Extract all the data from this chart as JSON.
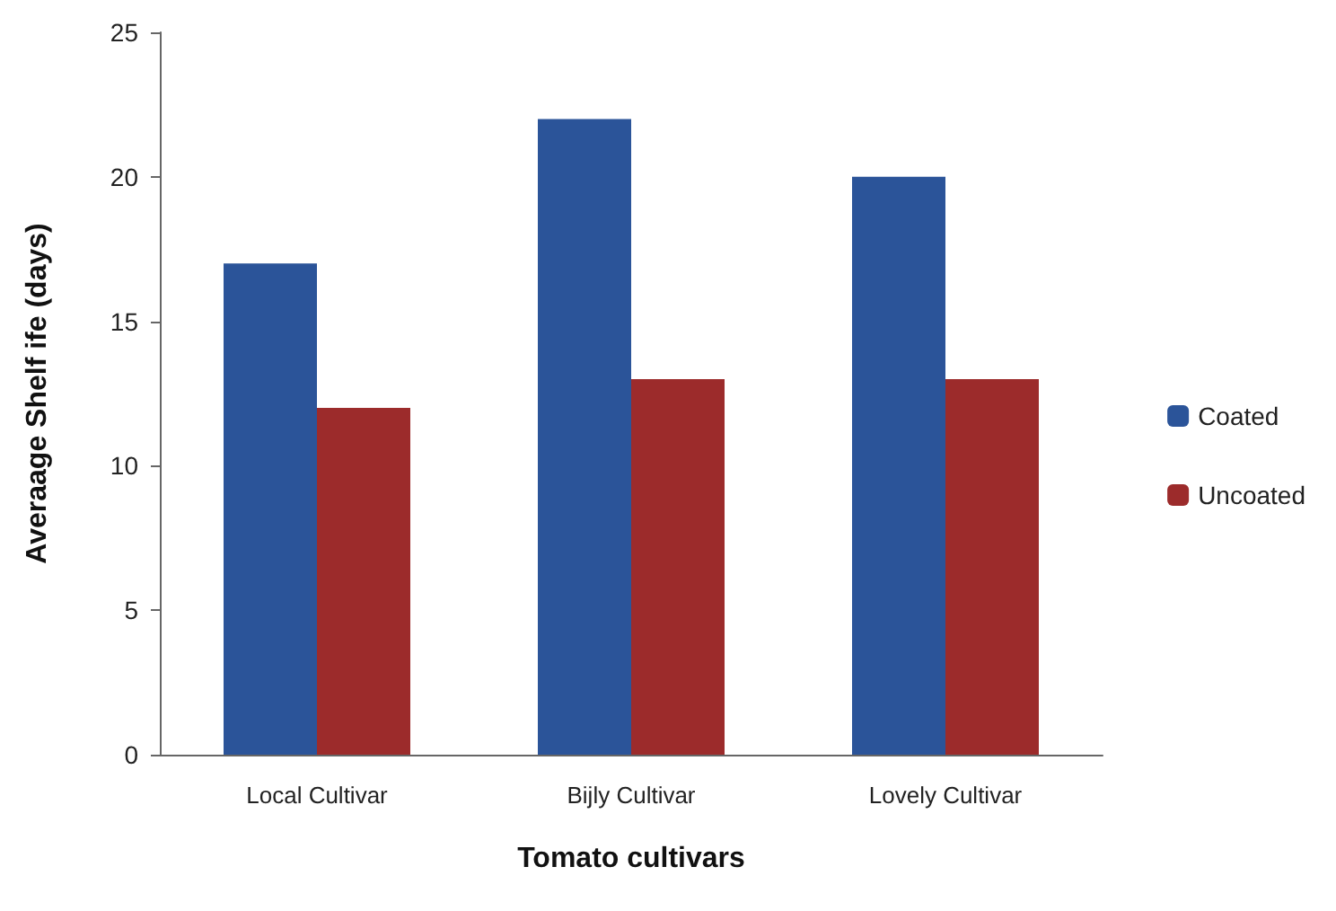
{
  "chart_data": {
    "type": "bar",
    "xlabel": "Tomato cultivars",
    "ylabel": "Averaage Shelf ife (days)",
    "categories": [
      "Local Cultivar",
      "Bijly Cultivar",
      "Lovely Cultivar"
    ],
    "series": [
      {
        "name": "Coated",
        "color": "#2b5499",
        "values": [
          17,
          22,
          20
        ]
      },
      {
        "name": "Uncoated",
        "color": "#9c2b2b",
        "values": [
          12,
          13,
          13
        ]
      }
    ],
    "ylim": [
      0,
      25
    ],
    "yticks": [
      0,
      5,
      10,
      15,
      20,
      25
    ],
    "grid": false,
    "legend": "right"
  }
}
